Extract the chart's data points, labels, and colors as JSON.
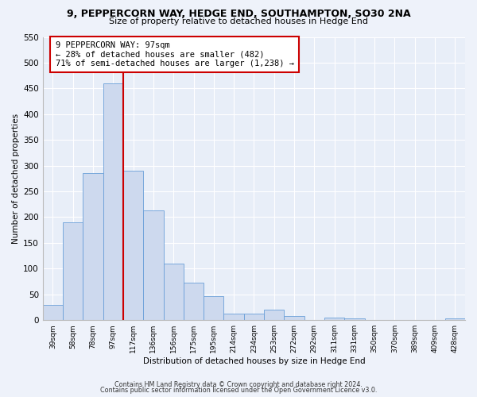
{
  "title": "9, PEPPERCORN WAY, HEDGE END, SOUTHAMPTON, SO30 2NA",
  "subtitle": "Size of property relative to detached houses in Hedge End",
  "xlabel": "Distribution of detached houses by size in Hedge End",
  "ylabel": "Number of detached properties",
  "bin_labels": [
    "39sqm",
    "58sqm",
    "78sqm",
    "97sqm",
    "117sqm",
    "136sqm",
    "156sqm",
    "175sqm",
    "195sqm",
    "214sqm",
    "234sqm",
    "253sqm",
    "272sqm",
    "292sqm",
    "311sqm",
    "331sqm",
    "350sqm",
    "370sqm",
    "389sqm",
    "409sqm",
    "428sqm"
  ],
  "bin_values": [
    30,
    190,
    285,
    460,
    290,
    213,
    110,
    73,
    46,
    13,
    13,
    20,
    8,
    0,
    5,
    3,
    0,
    0,
    0,
    0,
    4
  ],
  "bar_color": "#cdd9ee",
  "bar_edge_color": "#6a9fd8",
  "vline_x": 3.5,
  "vline_color": "#cc0000",
  "annotation_title": "9 PEPPERCORN WAY: 97sqm",
  "annotation_line1": "← 28% of detached houses are smaller (482)",
  "annotation_line2": "71% of semi-detached houses are larger (1,238) →",
  "annotation_box_edge_color": "#cc0000",
  "ylim": [
    0,
    550
  ],
  "yticks": [
    0,
    50,
    100,
    150,
    200,
    250,
    300,
    350,
    400,
    450,
    500,
    550
  ],
  "footer1": "Contains HM Land Registry data © Crown copyright and database right 2024.",
  "footer2": "Contains public sector information licensed under the Open Government Licence v3.0.",
  "bg_color": "#eef2fa",
  "plot_bg_color": "#e8eef8"
}
